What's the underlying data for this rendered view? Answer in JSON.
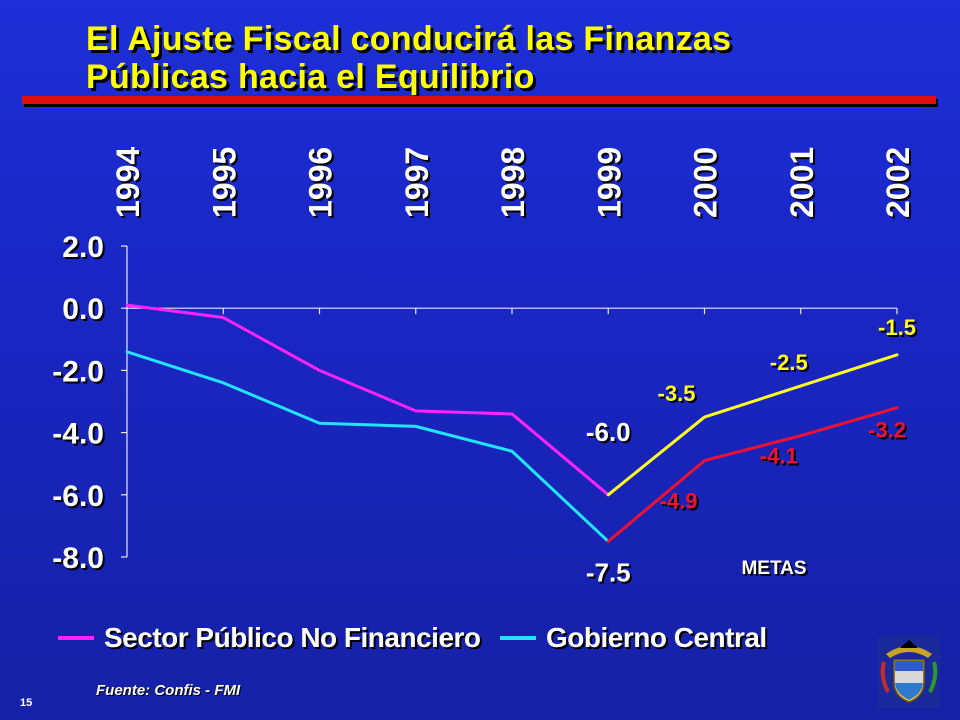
{
  "slide": {
    "title_line1": "El Ajuste Fiscal conducirá las Finanzas",
    "title_line2": "Públicas hacia el Equilibrio",
    "source": "Fuente: Confis - FMI",
    "page_number": "15",
    "metas_label": "METAS"
  },
  "chart_data": {
    "type": "line",
    "x": [
      "1994",
      "1995",
      "1996",
      "1997",
      "1998",
      "1999",
      "2000",
      "2001",
      "2002"
    ],
    "ylim": [
      -8.0,
      2.0
    ],
    "yticks": [
      "2.0",
      "0.0",
      "-2.0",
      "-4.0",
      "-6.0",
      "-8.0"
    ],
    "series": [
      {
        "name": "Sector Público No Financiero",
        "color": "#ff22ff",
        "values": [
          0.1,
          -0.3,
          -2.0,
          -3.3,
          -3.4,
          -6.0,
          null,
          null,
          null
        ]
      },
      {
        "name": "Gobierno Central",
        "color": "#22e4ff",
        "values": [
          -1.4,
          -2.4,
          -3.7,
          -3.8,
          -4.6,
          -7.5,
          null,
          null,
          null
        ]
      },
      {
        "name": "",
        "color": "#ffff22",
        "values": [
          null,
          null,
          null,
          null,
          null,
          -6.0,
          -3.5,
          -2.5,
          -1.5
        ]
      },
      {
        "name": "",
        "color": "#ee1133",
        "values": [
          null,
          null,
          null,
          null,
          null,
          -7.5,
          -4.9,
          -4.1,
          -3.2
        ]
      }
    ],
    "data_labels": [
      {
        "text": "-6.0",
        "x": "1999",
        "y": -6.0,
        "color": "#ffffff"
      },
      {
        "text": "-7.5",
        "x": "1999",
        "y": -7.5,
        "color": "#ffffff"
      },
      {
        "text": "-3.5",
        "x": "2000",
        "y": -3.5,
        "color": "#ffff22"
      },
      {
        "text": "-2.5",
        "x": "2001",
        "y": -2.5,
        "color": "#ffff22"
      },
      {
        "text": "-1.5",
        "x": "2002",
        "y": -1.5,
        "color": "#ffff22"
      },
      {
        "text": "-4.9",
        "x": "2000",
        "y": -4.9,
        "color": "#ee1133"
      },
      {
        "text": "-4.1",
        "x": "2001",
        "y": -4.1,
        "color": "#ee1133"
      },
      {
        "text": "-3.2",
        "x": "2002",
        "y": -3.2,
        "color": "#ee1133"
      }
    ],
    "legend": [
      {
        "label": "Sector Público No Financiero",
        "color": "#ff22ff"
      },
      {
        "label": "Gobierno Central",
        "color": "#22e4ff"
      }
    ],
    "legend_position": "bottom",
    "grid": false
  }
}
